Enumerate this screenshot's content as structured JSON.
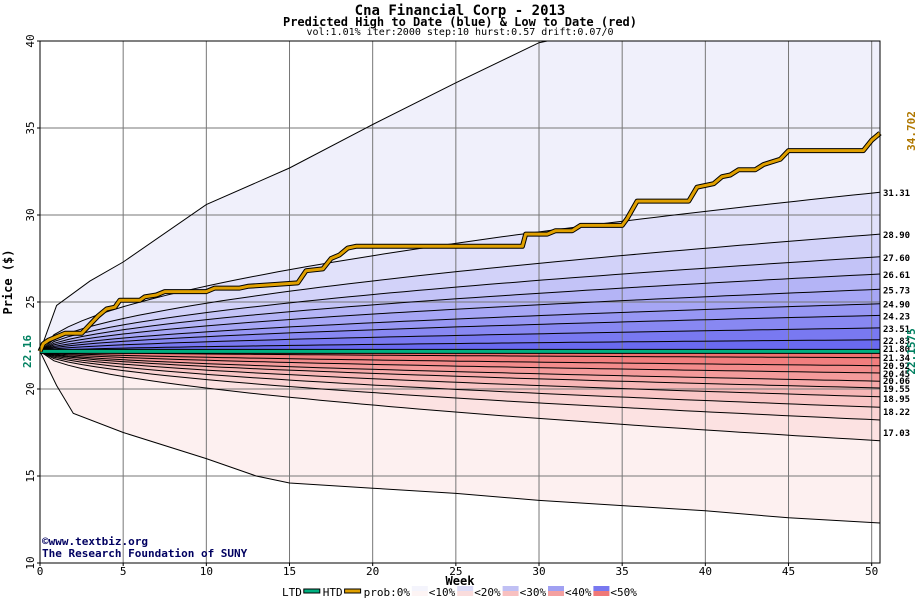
{
  "title": "Cna Financial Corp - 2013",
  "subtitle": "Predicted High to Date (blue) &  Low to Date (red)",
  "params": "vol:1.01% iter:2000 step:10 hurst:0.57 drift:0.07/0",
  "watermark_line1": "©www.textbiz.org",
  "watermark_line2": "The Research Foundation of SUNY",
  "colors": {
    "htd": "#e0a000",
    "ltd": "#00b080",
    "current_line": "#008060",
    "blue_light": "#f0f0fb",
    "blue_dark": "#6a6af0",
    "red_light": "#fdf0f0",
    "red_dark": "#f07070"
  },
  "chart_data": {
    "type": "line",
    "xlabel": "Week",
    "ylabel": "Price ($)",
    "xlim": [
      0,
      50.5
    ],
    "ylim": [
      10,
      40
    ],
    "xticks": [
      0,
      5,
      10,
      15,
      20,
      25,
      30,
      35,
      40,
      45,
      50
    ],
    "yticks": [
      10,
      15,
      20,
      25,
      30,
      35,
      40
    ],
    "start_price_label": "22.16",
    "start_price": 22.16,
    "current_value_label": "22.1575",
    "current_value": 22.1575,
    "htd_value_label": "34.702",
    "legend": {
      "ltd": "LTD",
      "htd": "HTD",
      "prob": "prob:0%",
      "b10": "<10%",
      "b20": "<20%",
      "b30": "<30%",
      "b40": "<40%",
      "b50": "<50%"
    },
    "upper_band_end_labels": [
      "31.31",
      "28.90",
      "27.60",
      "26.61",
      "25.73",
      "24.90",
      "24.23",
      "23.51",
      "22.83"
    ],
    "upper_band_end_values": [
      31.31,
      28.9,
      27.6,
      26.61,
      25.73,
      24.9,
      24.23,
      23.51,
      22.83
    ],
    "upper_outer_envelope": [
      [
        0,
        22.16
      ],
      [
        1,
        24.8
      ],
      [
        3,
        26.2
      ],
      [
        5,
        27.3
      ],
      [
        10,
        30.6
      ],
      [
        15,
        32.7
      ],
      [
        20,
        35.2
      ],
      [
        25,
        37.6
      ],
      [
        30,
        39.9
      ],
      [
        30.5,
        40
      ]
    ],
    "lower_band_end_labels": [
      "21.80",
      "21.34",
      "20.92",
      "20.45",
      "20.06",
      "19.55",
      "18.95",
      "18.22",
      "17.03"
    ],
    "lower_band_end_values": [
      21.8,
      21.34,
      20.92,
      20.45,
      20.06,
      19.55,
      18.95,
      18.22,
      17.03
    ],
    "lower_outer_envelope": [
      [
        0,
        22.16
      ],
      [
        1,
        20.2
      ],
      [
        2,
        18.6
      ],
      [
        5,
        17.5
      ],
      [
        10,
        16.0
      ],
      [
        13,
        15.0
      ],
      [
        15,
        14.6
      ],
      [
        20,
        14.3
      ],
      [
        25,
        14.0
      ],
      [
        30,
        13.6
      ],
      [
        35,
        13.3
      ],
      [
        40,
        13.0
      ],
      [
        45,
        12.6
      ],
      [
        50.5,
        12.3
      ]
    ],
    "htd_series": [
      [
        0,
        22.16
      ],
      [
        0.2,
        22.6
      ],
      [
        0.5,
        22.8
      ],
      [
        1,
        23.0
      ],
      [
        1.5,
        23.2
      ],
      [
        2.5,
        23.2
      ],
      [
        2.8,
        23.5
      ],
      [
        3.2,
        23.9
      ],
      [
        3.5,
        24.2
      ],
      [
        4,
        24.6
      ],
      [
        4.5,
        24.7
      ],
      [
        4.8,
        25.1
      ],
      [
        6,
        25.1
      ],
      [
        6.3,
        25.3
      ],
      [
        7,
        25.4
      ],
      [
        7.5,
        25.6
      ],
      [
        10,
        25.6
      ],
      [
        10.5,
        25.8
      ],
      [
        12,
        25.8
      ],
      [
        12.5,
        25.9
      ],
      [
        14,
        26.0
      ],
      [
        15.5,
        26.1
      ],
      [
        16,
        26.8
      ],
      [
        17,
        26.9
      ],
      [
        17.5,
        27.5
      ],
      [
        18,
        27.7
      ],
      [
        18.5,
        28.1
      ],
      [
        19,
        28.2
      ],
      [
        29,
        28.2
      ],
      [
        29.2,
        28.9
      ],
      [
        30.5,
        28.9
      ],
      [
        31,
        29.1
      ],
      [
        32,
        29.1
      ],
      [
        32.5,
        29.4
      ],
      [
        35,
        29.4
      ],
      [
        35.3,
        29.8
      ],
      [
        35.6,
        30.3
      ],
      [
        35.9,
        30.8
      ],
      [
        39,
        30.8
      ],
      [
        39.5,
        31.6
      ],
      [
        40.5,
        31.8
      ],
      [
        41,
        32.2
      ],
      [
        41.5,
        32.3
      ],
      [
        42,
        32.6
      ],
      [
        43,
        32.6
      ],
      [
        43.5,
        32.9
      ],
      [
        44.5,
        33.2
      ],
      [
        45,
        33.7
      ],
      [
        49.5,
        33.7
      ],
      [
        50,
        34.3
      ],
      [
        50.5,
        34.702
      ]
    ],
    "ltd_series": [
      [
        0,
        22.16
      ],
      [
        50.5,
        22.16
      ]
    ]
  }
}
